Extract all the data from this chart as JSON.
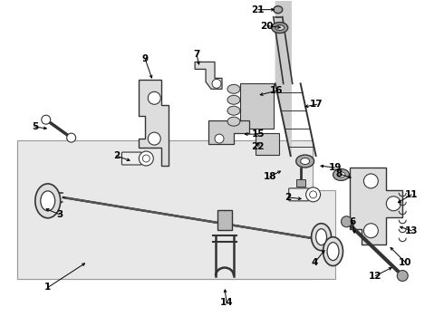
{
  "bg_color": "#ffffff",
  "box_color": "#e8e8e8",
  "line_color": "#333333",
  "dark_color": "#333333",
  "label_fontsize": 7.5,
  "fig_width": 4.9,
  "fig_height": 3.6,
  "dpi": 100
}
